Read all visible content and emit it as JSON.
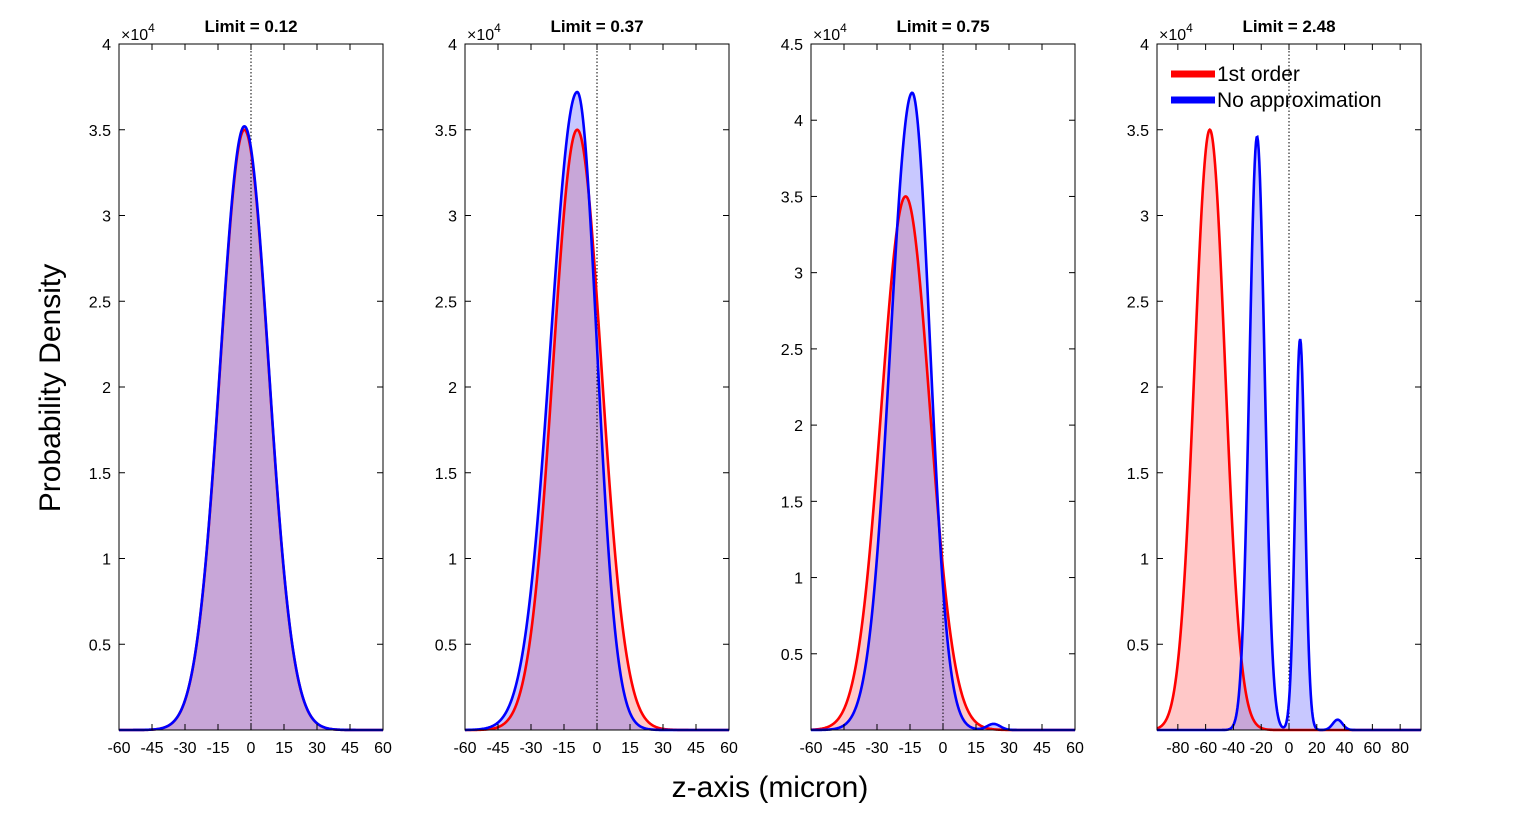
{
  "figure": {
    "ylabel": "Probability Density",
    "xlabel": "z-axis (micron)",
    "exponent_base": "×10",
    "exponent_power": "4"
  },
  "colors": {
    "first_order": "#ff0000",
    "no_approx": "#0000ff",
    "first_order_fill": "#ffc8c8",
    "no_approx_fill": "#c8c8ff",
    "overlap_fill": "#c8a6d8",
    "axis": "#000000",
    "zero_line": "#000000"
  },
  "legend": {
    "items": [
      {
        "label": "1st order",
        "color": "#ff0000"
      },
      {
        "label": "No approximation",
        "color": "#0000ff"
      }
    ]
  },
  "chart_data": [
    {
      "type": "line",
      "title": "Limit = 0.12",
      "xlim": [
        -60,
        60
      ],
      "ylim": [
        0,
        4
      ],
      "xticks": [
        -60,
        -45,
        -30,
        -15,
        0,
        15,
        30,
        45,
        60
      ],
      "yticks": [
        0.5,
        1,
        1.5,
        2,
        2.5,
        3,
        3.5,
        4
      ],
      "ytick_labels": [
        "0.5",
        "1",
        "1.5",
        "2",
        "2.5",
        "3",
        "3.5",
        "4"
      ],
      "series": [
        {
          "name": "1st order",
          "peaks": [
            {
              "mu": -3,
              "sigma": 11,
              "amp": 3.5
            }
          ]
        },
        {
          "name": "No approximation",
          "peaks": [
            {
              "mu": -3,
              "sigma": 11,
              "amp": 3.52
            }
          ]
        }
      ]
    },
    {
      "type": "line",
      "title": "Limit = 0.37",
      "xlim": [
        -60,
        60
      ],
      "ylim": [
        0,
        4
      ],
      "xticks": [
        -60,
        -45,
        -30,
        -15,
        0,
        15,
        30,
        45,
        60
      ],
      "yticks": [
        0.5,
        1,
        1.5,
        2,
        2.5,
        3,
        3.5,
        4
      ],
      "ytick_labels": [
        "0.5",
        "1",
        "1.5",
        "2",
        "2.5",
        "3",
        "3.5",
        "4"
      ],
      "series": [
        {
          "name": "1st order",
          "peaks": [
            {
              "mu": -9,
              "sigma": 11,
              "amp": 3.5
            }
          ]
        },
        {
          "name": "No approximation",
          "peaks": [
            {
              "mu": -9,
              "sigma": 10.5,
              "amp": 3.72,
              "skew": 0.15
            }
          ]
        }
      ]
    },
    {
      "type": "line",
      "title": "Limit = 0.75",
      "xlim": [
        -60,
        60
      ],
      "ylim": [
        0,
        4.5
      ],
      "xticks": [
        -60,
        -45,
        -30,
        -15,
        0,
        15,
        30,
        45,
        60
      ],
      "yticks": [
        0.5,
        1,
        1.5,
        2,
        2.5,
        3,
        3.5,
        4,
        4.5
      ],
      "ytick_labels": [
        "0.5",
        "1",
        "1.5",
        "2",
        "2.5",
        "3",
        "3.5",
        "4",
        "4.5"
      ],
      "series": [
        {
          "name": "1st order",
          "peaks": [
            {
              "mu": -17,
              "sigma": 11,
              "amp": 3.5
            }
          ]
        },
        {
          "name": "No approximation",
          "peaks": [
            {
              "mu": -14,
              "sigma": 9,
              "amp": 4.18,
              "skew": 0.1
            },
            {
              "mu": 23,
              "sigma": 3,
              "amp": 0.04
            }
          ]
        }
      ]
    },
    {
      "type": "line",
      "title": "Limit = 2.48",
      "xlim": [
        -95,
        95
      ],
      "ylim": [
        0,
        4
      ],
      "xticks": [
        -80,
        -60,
        -40,
        -20,
        0,
        20,
        40,
        60,
        80
      ],
      "xtick_labels": [
        "-80",
        "-60",
        "-40",
        "-20",
        "0",
        "20",
        "40",
        "60",
        "80"
      ],
      "yticks": [
        0.5,
        1,
        1.5,
        2,
        2.5,
        3,
        3.5,
        4
      ],
      "ytick_labels": [
        "0.5",
        "1",
        "1.5",
        "2",
        "2.5",
        "3",
        "3.5",
        "4"
      ],
      "series": [
        {
          "name": "1st order",
          "peaks": [
            {
              "mu": -57,
              "sigma": 11,
              "amp": 3.5
            }
          ]
        },
        {
          "name": "No approximation",
          "peaks": [
            {
              "mu": -23,
              "sigma": 5.5,
              "amp": 3.46
            },
            {
              "mu": 8,
              "sigma": 3.5,
              "amp": 2.28
            },
            {
              "mu": 35,
              "sigma": 3.5,
              "amp": 0.06
            }
          ]
        }
      ]
    }
  ]
}
